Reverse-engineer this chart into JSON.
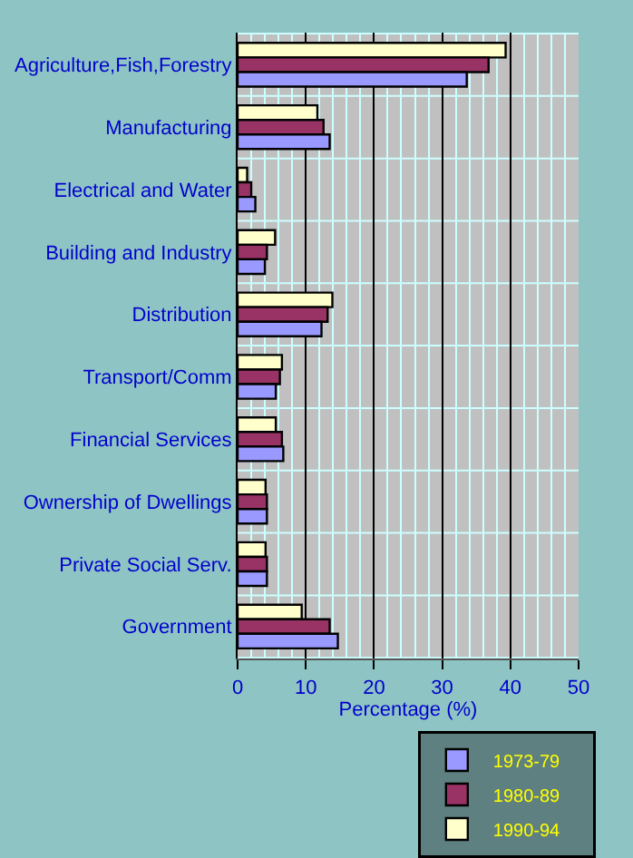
{
  "chart_data": {
    "type": "bar",
    "orientation": "horizontal",
    "xlabel": "Percentage (%)",
    "categories": [
      "Agriculture,Fish,Forestry",
      "Manufacturing",
      "Electrical and Water",
      "Building and Industry",
      "Distribution",
      "Transport/Comm",
      "Financial Services",
      "Ownership of Dwellings",
      "Private Social Serv.",
      "Government"
    ],
    "series": [
      {
        "name": "1973-79",
        "color": "#9999ff",
        "values": [
          33.6,
          13.5,
          2.6,
          4.0,
          12.3,
          5.6,
          6.7,
          4.3,
          4.3,
          14.7
        ]
      },
      {
        "name": "1980-89",
        "color": "#993366",
        "values": [
          36.8,
          12.6,
          2.0,
          4.3,
          13.2,
          6.2,
          6.5,
          4.3,
          4.3,
          13.5
        ]
      },
      {
        "name": "1990-94",
        "color": "#ffffcc",
        "values": [
          39.3,
          11.7,
          1.4,
          5.5,
          13.9,
          6.5,
          5.6,
          4.1,
          4.1,
          9.4
        ]
      }
    ],
    "xlim": [
      0,
      50
    ],
    "xticks": [
      0,
      10,
      20,
      30,
      40,
      50
    ],
    "grid": "x",
    "legend": "bottom"
  }
}
